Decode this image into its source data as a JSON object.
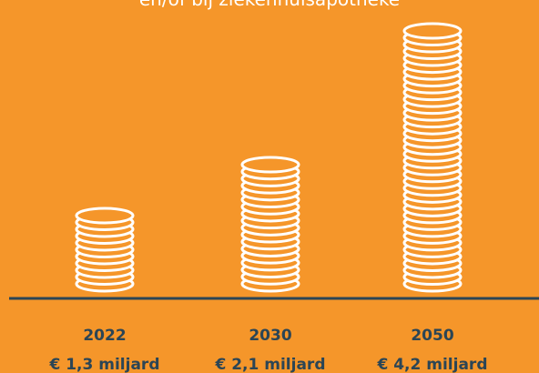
{
  "chart_data": {
    "type": "bar",
    "subtitle": "en/of bij ziekenhuisapotheke",
    "categories": [
      "2022",
      "2030",
      "2050"
    ],
    "values": [
      1.3,
      2.1,
      4.2
    ],
    "value_labels": [
      "€ 1,3 miljard",
      "€ 2,1 miljard",
      "€ 4,2 miljard"
    ],
    "color": "#ffffff"
  }
}
